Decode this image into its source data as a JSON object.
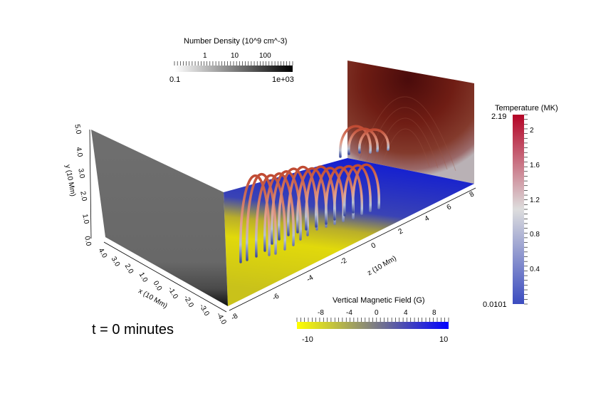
{
  "time_label": "t = 0 minutes",
  "colorbars": {
    "density": {
      "title": "Number Density (10^9 cm^-3)",
      "min_label": "0.1",
      "max_label": "1e+03",
      "tick_labels": [
        "1",
        "10",
        "100"
      ],
      "gradient": [
        "#ffffff",
        "#000000"
      ]
    },
    "temperature": {
      "title": "Temperature (MK)",
      "min_label": "0.0101",
      "max_label": "2.19",
      "tick_labels": [
        "0.4",
        "0.8",
        "1.2",
        "1.6",
        "2"
      ],
      "gradient": [
        "#3b4cc0",
        "#dddddd",
        "#b40426"
      ]
    },
    "bfield": {
      "title": "Vertical Magnetic Field (G)",
      "min_label": "-10",
      "max_label": "10",
      "tick_labels": [
        "-8",
        "-4",
        "0",
        "4",
        "8"
      ],
      "gradient": [
        "#ffff00",
        "#808080",
        "#0000ff"
      ]
    }
  },
  "axes": {
    "y": {
      "title": "y (10 Mm)",
      "ticks": [
        "0.0",
        "1.0",
        "2.0",
        "3.0",
        "4.0",
        "5.0"
      ]
    },
    "x": {
      "title": "x (10 Mm)",
      "ticks": [
        "4.0",
        "3.0",
        "2.0",
        "1.0",
        "0.0",
        "-1.0",
        "-2.0",
        "-3.0",
        "-4.0"
      ]
    },
    "z": {
      "title": "z (10 Mm)",
      "ticks": [
        "-8",
        "-6",
        "-4",
        "-2",
        "0",
        "2",
        "4",
        "6",
        "8"
      ]
    }
  }
}
